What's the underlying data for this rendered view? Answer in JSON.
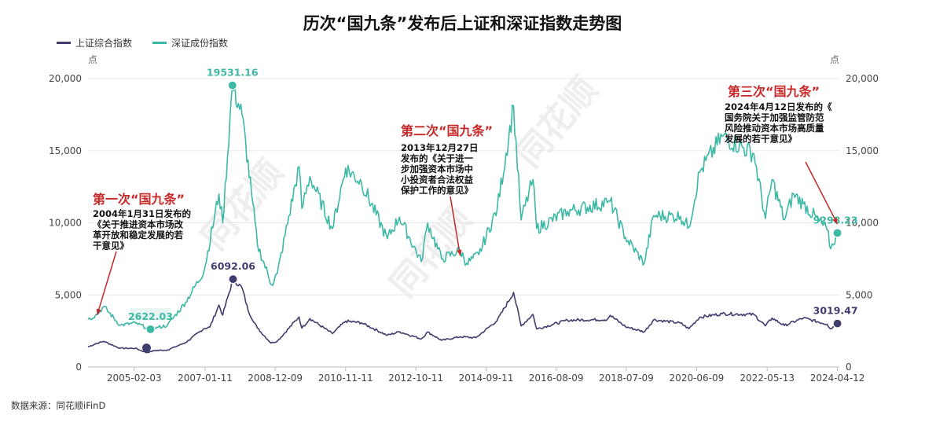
{
  "chart_data": {
    "type": "line",
    "title": "历次“国九条”发布后上证和深证指数走势图",
    "ylabel_left": "点",
    "ylabel_right": "点",
    "ylim": [
      0,
      20000
    ],
    "y_ticks": [
      "0",
      "5,000",
      "10,000",
      "15,000",
      "20,000"
    ],
    "x_range": [
      "2003-11-01",
      "2024-05-01"
    ],
    "x_ticks": [
      "2005-02-03",
      "2007-01-11",
      "2008-12-09",
      "2010-11-11",
      "2012-10-11",
      "2014-09-11",
      "2016-08-09",
      "2018-07-09",
      "2020-06-09",
      "2022-05-13",
      "2024-04-12"
    ],
    "legend_position": "top-left",
    "series": [
      {
        "name": "上证综合指数",
        "color": "#3f3d6e",
        "points": [
          [
            "2003-11-01",
            1400
          ],
          [
            "2004-01-31",
            1650
          ],
          [
            "2004-04-07",
            1780
          ],
          [
            "2004-09-15",
            1300
          ],
          [
            "2005-02-15",
            1300
          ],
          [
            "2005-06-06",
            998
          ],
          [
            "2005-09-01",
            1150
          ],
          [
            "2006-01-01",
            1180
          ],
          [
            "2006-07-01",
            1700
          ],
          [
            "2006-12-31",
            2670
          ],
          [
            "2007-02-27",
            2770
          ],
          [
            "2007-05-29",
            4300
          ],
          [
            "2007-07-05",
            3600
          ],
          [
            "2007-10-16",
            6092.06
          ],
          [
            "2008-01-14",
            5500
          ],
          [
            "2008-03-15",
            3900
          ],
          [
            "2008-06-15",
            2700
          ],
          [
            "2008-10-28",
            1665
          ],
          [
            "2008-12-31",
            1800
          ],
          [
            "2009-08-04",
            3478
          ],
          [
            "2009-09-01",
            2700
          ],
          [
            "2009-11-20",
            3360
          ],
          [
            "2010-07-02",
            2320
          ],
          [
            "2010-11-11",
            3180
          ],
          [
            "2011-04-18",
            3070
          ],
          [
            "2011-12-31",
            2200
          ],
          [
            "2012-05-01",
            2450
          ],
          [
            "2012-12-04",
            1950
          ],
          [
            "2013-02-06",
            2430
          ],
          [
            "2013-06-25",
            1850
          ],
          [
            "2013-12-27",
            2100
          ],
          [
            "2014-06-01",
            2030
          ],
          [
            "2014-12-31",
            3230
          ],
          [
            "2015-06-12",
            5178
          ],
          [
            "2015-08-26",
            2850
          ],
          [
            "2015-12-22",
            3650
          ],
          [
            "2016-01-28",
            2638
          ],
          [
            "2016-12-01",
            3250
          ],
          [
            "2017-12-31",
            3300
          ],
          [
            "2018-01-29",
            3590
          ],
          [
            "2018-07-01",
            2800
          ],
          [
            "2019-01-04",
            2440
          ],
          [
            "2019-04-08",
            3280
          ],
          [
            "2019-12-31",
            3050
          ],
          [
            "2020-03-23",
            2660
          ],
          [
            "2020-07-08",
            3450
          ],
          [
            "2021-02-18",
            3700
          ],
          [
            "2021-12-31",
            3640
          ],
          [
            "2022-04-26",
            2860
          ],
          [
            "2022-07-01",
            3400
          ],
          [
            "2022-10-31",
            2880
          ],
          [
            "2023-05-09",
            3400
          ],
          [
            "2023-12-31",
            2970
          ],
          [
            "2024-02-05",
            2650
          ],
          [
            "2024-04-12",
            3019.47
          ]
        ]
      },
      {
        "name": "深证成份指数",
        "color": "#3cb8a4",
        "points": [
          [
            "2003-11-01",
            3300
          ],
          [
            "2004-01-31",
            3650
          ],
          [
            "2004-04-07",
            4200
          ],
          [
            "2004-09-15",
            2900
          ],
          [
            "2005-02-15",
            3050
          ],
          [
            "2005-07-15",
            2622.03
          ],
          [
            "2005-10-01",
            2750
          ],
          [
            "2006-01-01",
            2900
          ],
          [
            "2006-07-01",
            4500
          ],
          [
            "2006-12-31",
            6650
          ],
          [
            "2007-05-29",
            12000
          ],
          [
            "2007-07-05",
            10000
          ],
          [
            "2007-10-10",
            19531.16
          ],
          [
            "2008-01-14",
            17500
          ],
          [
            "2008-04-18",
            12000
          ],
          [
            "2008-06-15",
            8500
          ],
          [
            "2008-11-04",
            5700
          ],
          [
            "2008-12-31",
            6500
          ],
          [
            "2009-08-04",
            13900
          ],
          [
            "2009-09-01",
            11000
          ],
          [
            "2009-11-20",
            13200
          ],
          [
            "2010-07-02",
            9600
          ],
          [
            "2010-11-11",
            13800
          ],
          [
            "2011-04-18",
            12800
          ],
          [
            "2011-12-31",
            8900
          ],
          [
            "2012-05-01",
            10400
          ],
          [
            "2012-12-04",
            7300
          ],
          [
            "2013-02-06",
            10000
          ],
          [
            "2013-06-25",
            7500
          ],
          [
            "2013-12-27",
            8100
          ],
          [
            "2014-03-01",
            7200
          ],
          [
            "2014-07-01",
            7800
          ],
          [
            "2014-12-31",
            11000
          ],
          [
            "2015-06-12",
            18100
          ],
          [
            "2015-08-26",
            10200
          ],
          [
            "2015-12-22",
            13000
          ],
          [
            "2016-01-28",
            9600
          ],
          [
            "2016-12-01",
            10800
          ],
          [
            "2017-12-31",
            11400
          ],
          [
            "2018-01-29",
            11500
          ],
          [
            "2018-07-01",
            9000
          ],
          [
            "2019-01-04",
            7200
          ],
          [
            "2019-04-08",
            10500
          ],
          [
            "2019-12-31",
            10450
          ],
          [
            "2020-03-23",
            9700
          ],
          [
            "2020-07-08",
            13500
          ],
          [
            "2021-02-18",
            16000
          ],
          [
            "2021-12-31",
            14800
          ],
          [
            "2022-04-26",
            10300
          ],
          [
            "2022-07-01",
            13000
          ],
          [
            "2022-10-31",
            10200
          ],
          [
            "2023-02-01",
            12000
          ],
          [
            "2023-05-09",
            11300
          ],
          [
            "2023-12-31",
            9500
          ],
          [
            "2024-02-05",
            8200
          ],
          [
            "2024-04-12",
            9298.23
          ]
        ]
      }
    ],
    "data_labels": [
      {
        "text": "19531.16",
        "date": "2007-10-10",
        "value": 19531.16,
        "series": "深证成份指数"
      },
      {
        "text": "2622.03",
        "date": "2005-07-15",
        "value": 2622.03,
        "series": "深证成份指数"
      },
      {
        "text": "9298.23",
        "date": "2024-04-12",
        "value": 9298.23,
        "series": "深证成份指数"
      },
      {
        "text": "6092.06",
        "date": "2007-10-16",
        "value": 6092.06,
        "series": "上证综合指数"
      },
      {
        "text": "3019.47",
        "date": "2024-04-12",
        "value": 3019.47,
        "series": "上证综合指数"
      }
    ],
    "min_marker": {
      "date": "2005-06-06",
      "value": 998,
      "series": "上证综合指数"
    },
    "annotations": [
      {
        "title": "第一次“国九条”",
        "body": [
          "2004年1月31日发布的",
          "《关于推进资本市场改",
          "革开放和稳定发展的若",
          "干意见》"
        ],
        "arrow_date": "2004-01-31",
        "arrow_value": 3400
      },
      {
        "title": "第二次“国九条”",
        "body": [
          "2013年12月27日",
          "发布的《关于进一",
          "步加强资本市场中",
          "小投资者合法权益",
          "保护工作的意见》"
        ],
        "arrow_date": "2013-12-27",
        "arrow_value": 7500
      },
      {
        "title": "第三次“国九条”",
        "body": [
          "2024年4月12日发布的《",
          "国务院关于加强监管防范",
          "风险推动资本市场高质量",
          "发展的若干意见》"
        ],
        "arrow_date": "2024-04-12",
        "arrow_value": 9700
      }
    ],
    "watermark": "同花顺",
    "annotation_color": "#c62828"
  },
  "source": "数据来源：同花顺iFinD"
}
